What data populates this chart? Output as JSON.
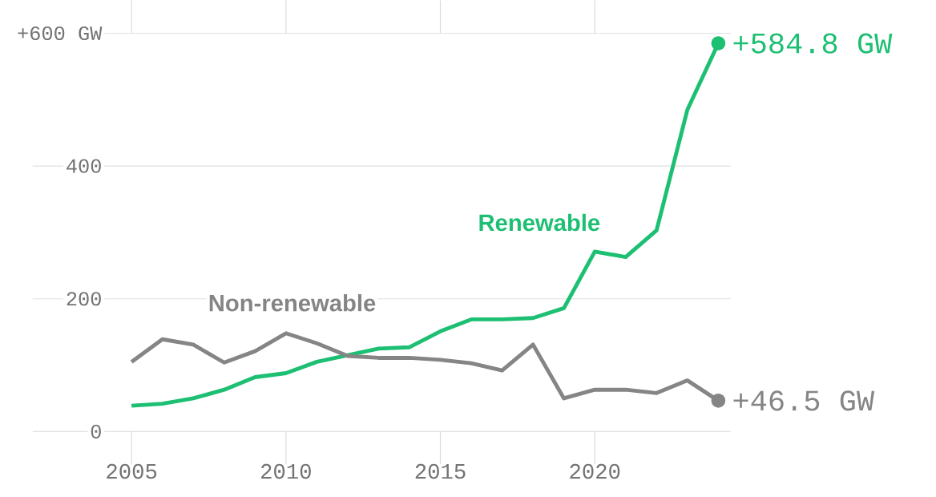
{
  "chart_data": {
    "type": "line",
    "x": [
      2005,
      2006,
      2007,
      2008,
      2009,
      2010,
      2011,
      2012,
      2013,
      2014,
      2015,
      2016,
      2017,
      2018,
      2019,
      2020,
      2021,
      2022,
      2023,
      2024
    ],
    "series": [
      {
        "name": "Renewable",
        "color": "#1dbf73",
        "values": [
          39,
          42,
          50,
          63,
          82,
          88,
          105,
          115,
          125,
          127,
          151,
          169,
          169,
          171,
          186,
          271,
          263,
          303,
          485,
          584.8
        ]
      },
      {
        "name": "Non-renewable",
        "color": "#858585",
        "values": [
          105,
          139,
          131,
          104,
          121,
          148,
          133,
          114,
          111,
          111,
          108,
          103,
          92,
          131,
          50,
          63,
          63,
          58,
          77,
          46.5
        ]
      }
    ],
    "xlim": [
      2001.8,
      2024.4
    ],
    "ylim": [
      0,
      600
    ],
    "xticks": [
      2005,
      2010,
      2015,
      2020
    ],
    "yticks": [
      0,
      200,
      400,
      {
        "value": 600,
        "label": "+600 GW"
      }
    ],
    "grid": "y",
    "annotations": [
      {
        "text": "+584.8 GW",
        "x": 2024,
        "y": 584.8
      },
      {
        "text": "+46.5 GW",
        "x": 2024,
        "y": 46.5
      }
    ]
  }
}
